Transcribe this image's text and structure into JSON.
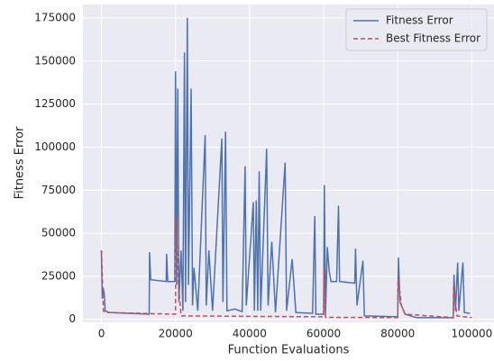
{
  "chart_data": {
    "type": "line",
    "xlabel": "Function Evaluations",
    "ylabel": "Fitness Error",
    "xlim": [
      -5000,
      106000
    ],
    "ylim": [
      -1700,
      182800
    ],
    "xticks": [
      0,
      20000,
      40000,
      60000,
      80000,
      100000
    ],
    "yticks": [
      0,
      25000,
      50000,
      75000,
      100000,
      125000,
      150000,
      175000
    ],
    "grid": true,
    "legend": "upper right",
    "series": [
      {
        "name": "Fitness Error",
        "color": "#4c72b0",
        "dash": false,
        "x": [
          0,
          200,
          500,
          800,
          1000,
          2000,
          12900,
          13000,
          13300,
          17500,
          17600,
          17900,
          19800,
          20000,
          20300,
          20600,
          20900,
          21500,
          22000,
          22400,
          22700,
          23200,
          23500,
          24200,
          24600,
          25000,
          26000,
          28000,
          28300,
          29000,
          30000,
          32500,
          32800,
          33500,
          33900,
          36000,
          38000,
          38800,
          39100,
          41000,
          41300,
          41800,
          42200,
          42600,
          43000,
          44600,
          45000,
          46000,
          47000,
          49600,
          50000,
          51500,
          52500,
          57000,
          57600,
          57900,
          60000,
          60200,
          60500,
          61000,
          61500,
          62000,
          63500,
          64000,
          64300,
          68400,
          68600,
          69000,
          70600,
          71000,
          80000,
          80200,
          80600,
          82000,
          85000,
          95000,
          95200,
          95600,
          96200,
          96500,
          97600,
          98000,
          99500
        ],
        "values": [
          40000,
          12000,
          18000,
          14000,
          5000,
          4000,
          3000,
          39000,
          23000,
          22000,
          38000,
          22000,
          22000,
          144000,
          20000,
          134000,
          10000,
          40000,
          5000,
          155000,
          10000,
          175000,
          20000,
          134000,
          8000,
          30000,
          5000,
          107000,
          8000,
          40000,
          5000,
          105000,
          10000,
          109000,
          5000,
          6000,
          4500,
          89000,
          8000,
          68000,
          5000,
          69000,
          5000,
          86000,
          5000,
          99000,
          8000,
          45000,
          4000,
          91000,
          5000,
          35000,
          4000,
          3500,
          60000,
          3000,
          3000,
          78000,
          3000,
          42000,
          28000,
          22000,
          22000,
          66000,
          22000,
          21000,
          41000,
          8000,
          34000,
          2000,
          1500,
          36000,
          10000,
          3000,
          1000,
          900,
          26000,
          5000,
          33000,
          5000,
          33000,
          4000,
          3500
        ]
      },
      {
        "name": "Best Fitness Error",
        "color": "#c44e52",
        "dash": true,
        "x": [
          0,
          300,
          500,
          1000,
          20000,
          20100,
          20800,
          21500,
          60000,
          60100,
          60500,
          80000,
          80100,
          81000,
          82000,
          95000,
          95100,
          96000,
          100000
        ],
        "values": [
          40000,
          20000,
          5000,
          4000,
          3000,
          60000,
          20000,
          2000,
          1500,
          30000,
          1200,
          1000,
          25000,
          8000,
          3000,
          1000,
          20000,
          2000,
          1000
        ]
      }
    ]
  }
}
